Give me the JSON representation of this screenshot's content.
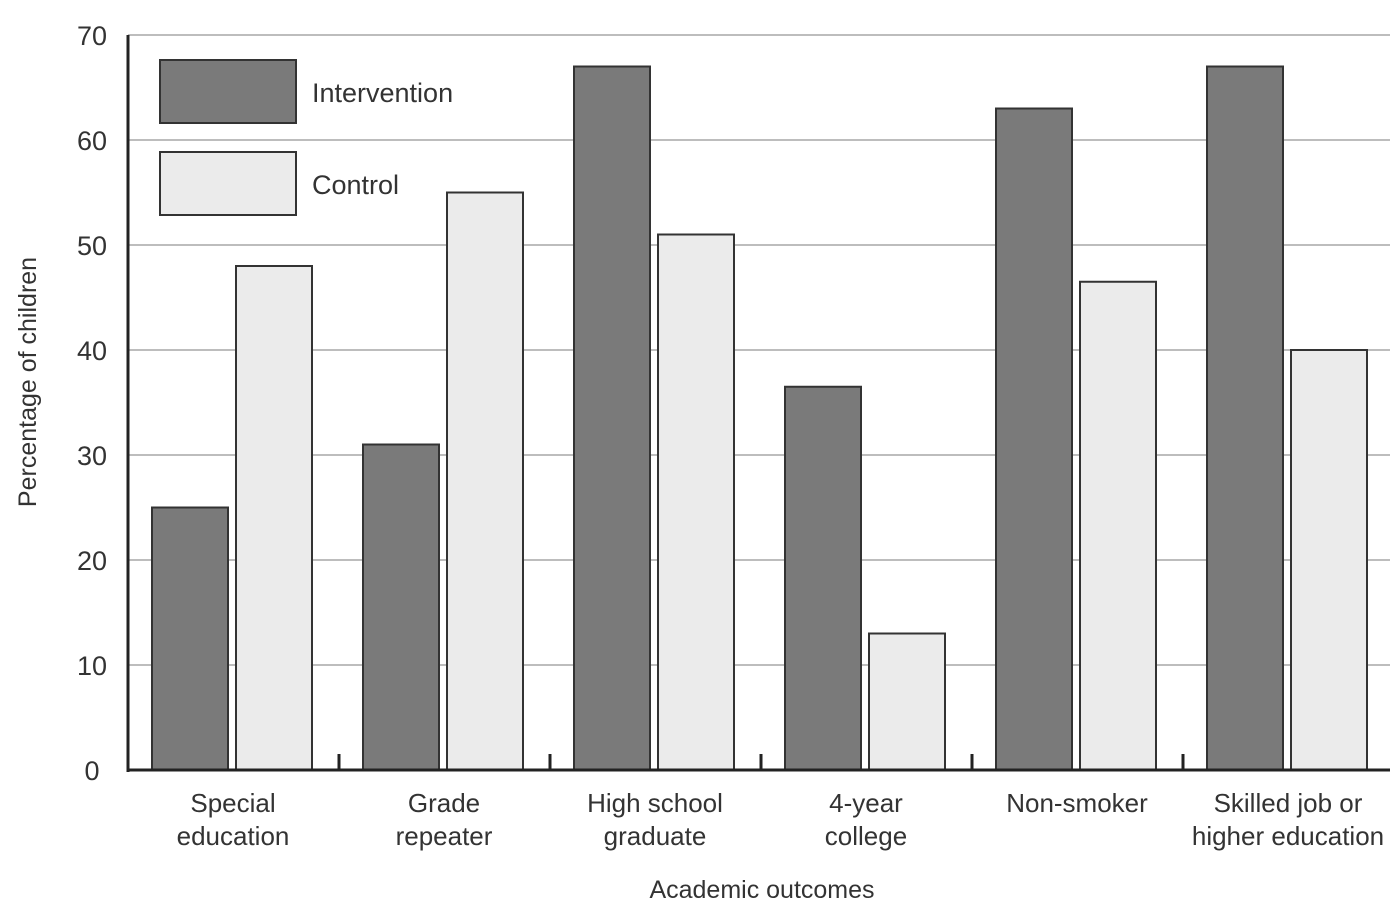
{
  "chart_data": {
    "type": "bar",
    "title": "",
    "xlabel": "Academic outcomes",
    "ylabel": "Percentage of children",
    "ylim": [
      0,
      70
    ],
    "yticks": [
      0,
      10,
      20,
      30,
      40,
      50,
      60,
      70
    ],
    "grid": true,
    "legend_position": "top-left",
    "categories": [
      [
        "Special",
        "education"
      ],
      [
        "Grade",
        "repeater"
      ],
      [
        "High school",
        "graduate"
      ],
      [
        "4-year",
        "college"
      ],
      [
        "Non-smoker"
      ],
      [
        "Skilled job or",
        "higher education"
      ]
    ],
    "series": [
      {
        "name": "Intervention",
        "color": "#7a7a7a",
        "values": [
          25,
          31,
          67,
          36.5,
          63,
          67
        ]
      },
      {
        "name": "Control",
        "color": "#ebebeb",
        "values": [
          48,
          55,
          51,
          13,
          46.5,
          40
        ]
      }
    ],
    "colors": {
      "grid": "#bdbdbd",
      "axis": "#222222",
      "bar_outline": "#333333",
      "text": "#333333"
    }
  }
}
